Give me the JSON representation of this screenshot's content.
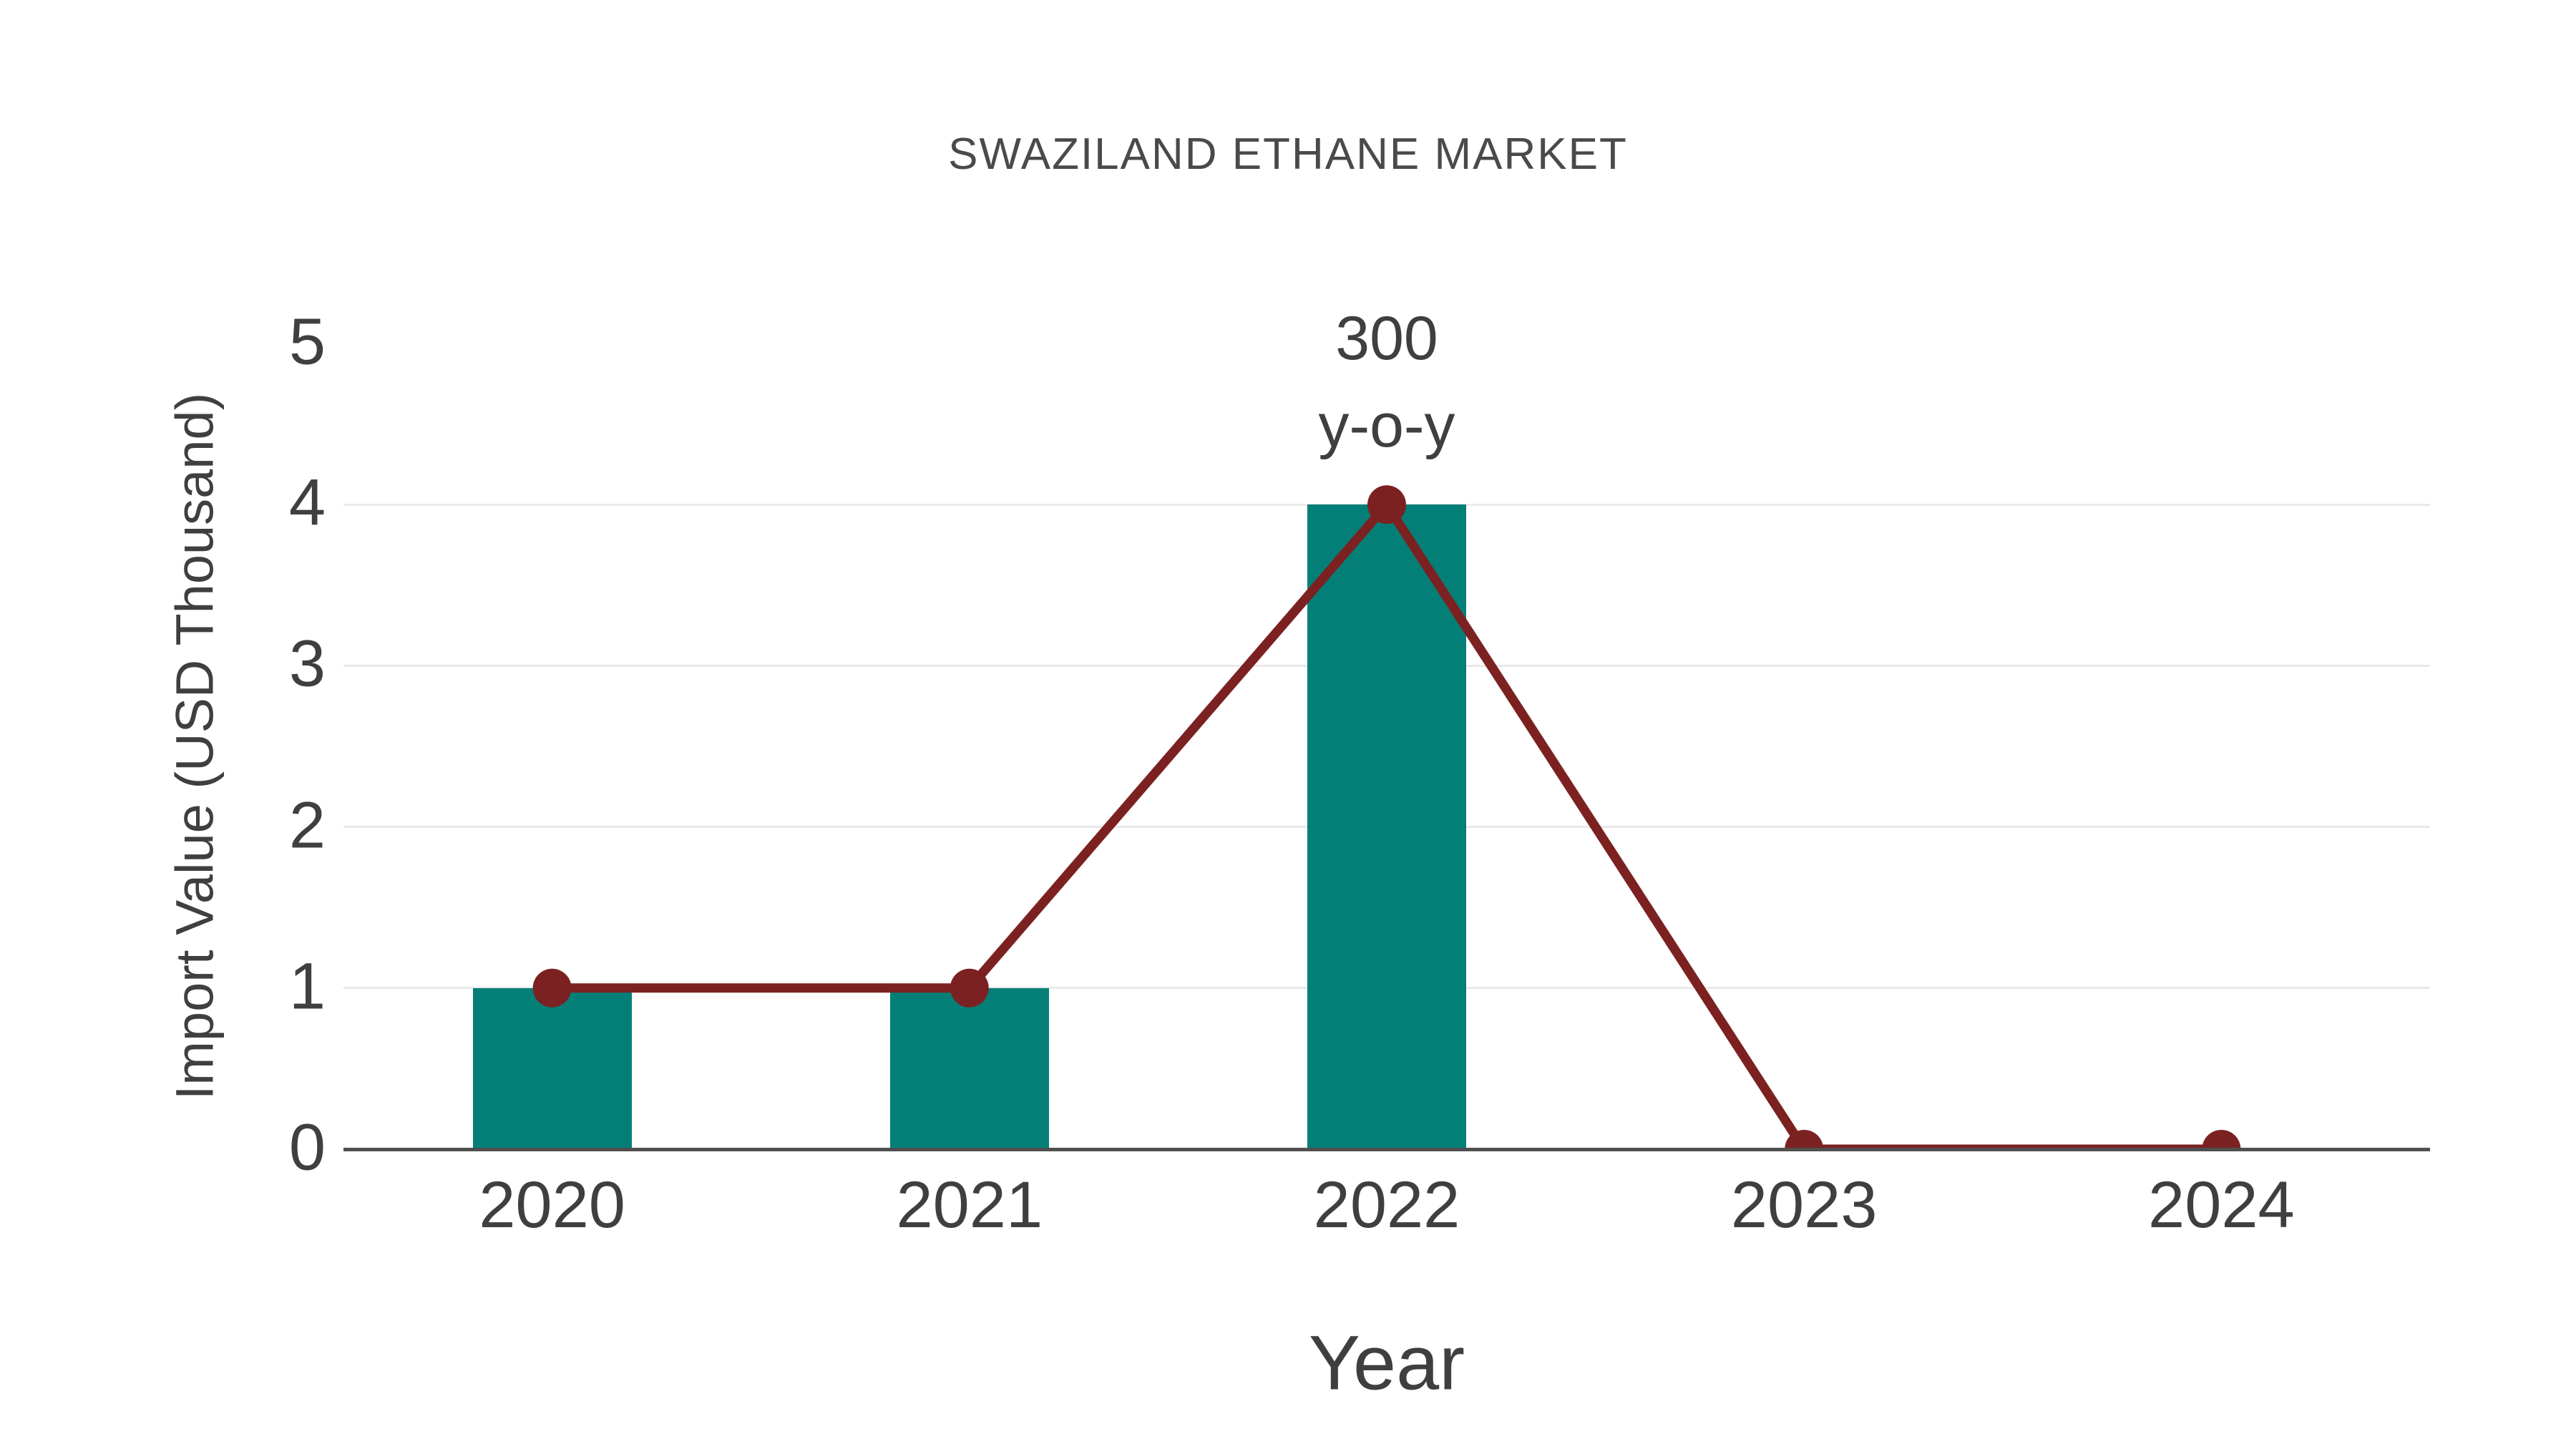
{
  "page": {
    "background": "#ffffff"
  },
  "chart_data": {
    "type": "bar",
    "title": "SWAZILAND ETHANE MARKET",
    "xlabel": "Year",
    "ylabel": "Import Value (USD Thousand)",
    "categories": [
      "2020",
      "2021",
      "2022",
      "2023",
      "2024"
    ],
    "series": [
      {
        "name": "import-value-bars",
        "type": "bar",
        "values": [
          1,
          1,
          4,
          0,
          0
        ],
        "color": "#047f78"
      },
      {
        "name": "import-value-line",
        "type": "line",
        "values": [
          1,
          1,
          4,
          0,
          0
        ],
        "color": "#7c2121",
        "marker": "circle"
      }
    ],
    "yticks": [
      0,
      1,
      2,
      3,
      4,
      5
    ],
    "ylim": [
      0,
      5
    ],
    "grid": "horizontal-only",
    "legend": "none",
    "annotation": {
      "lines": [
        "300",
        "y-o-y"
      ],
      "anchor_category": "2022"
    },
    "colors": {
      "bar": "#047f78",
      "line": "#7c2121",
      "axis_line": "#4f4f4f",
      "gridline": "#e9e9e9",
      "text": "#3f3f3f",
      "title_text": "#4a4a4a"
    }
  }
}
